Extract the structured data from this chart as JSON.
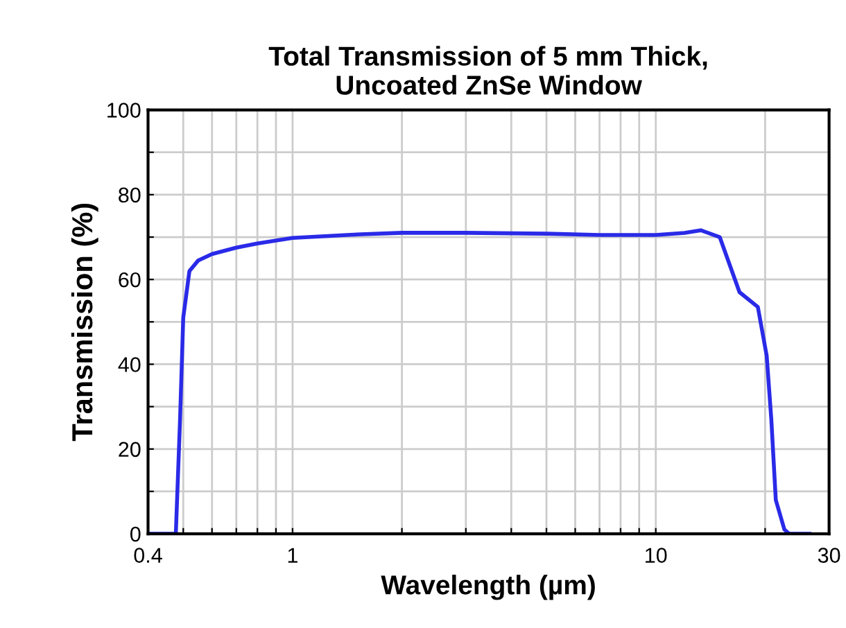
{
  "chart_data": {
    "type": "line",
    "title": "Total Transmission of 5 mm Thick,\nUncoated ZnSe Window",
    "xlabel": "Wavelength (µm)",
    "ylabel": "Transmission (%)",
    "log": "x",
    "grid": true,
    "marker": "none",
    "line_style": "solid",
    "xlim": [
      0.4,
      30
    ],
    "ylim": [
      0,
      100
    ],
    "xticks": [
      0.4,
      {
        "value": 0.5,
        "label": null
      },
      {
        "value": 0.6,
        "label": null
      },
      {
        "value": 0.7,
        "label": null
      },
      {
        "value": 0.8,
        "label": null
      },
      {
        "value": 0.9,
        "label": null
      },
      1,
      {
        "value": 2,
        "label": null
      },
      {
        "value": 3,
        "label": null
      },
      {
        "value": 4,
        "label": null
      },
      {
        "value": 5,
        "label": null
      },
      {
        "value": 6,
        "label": null
      },
      {
        "value": 7,
        "label": null
      },
      {
        "value": 8,
        "label": null
      },
      {
        "value": 9,
        "label": null
      },
      10,
      {
        "value": 20,
        "label": null
      },
      30
    ],
    "yticks": [
      0,
      {
        "value": 10,
        "label": null
      },
      20,
      {
        "value": 30,
        "label": null
      },
      40,
      {
        "value": 50,
        "label": null
      },
      60,
      {
        "value": 70,
        "label": null
      },
      80,
      {
        "value": 90,
        "label": null
      },
      100
    ],
    "series": [
      {
        "color": "#2a2ae8",
        "x": [
          0.4,
          0.477,
          0.49,
          0.5,
          0.52,
          0.55,
          0.6,
          0.7,
          0.8,
          1,
          1.5,
          2,
          3,
          5,
          7,
          10,
          12,
          13.3,
          15,
          17,
          19.1,
          20.2,
          20.8,
          21.4,
          22.6,
          23.3,
          26.5
        ],
        "values": [
          0,
          0,
          27,
          51,
          62,
          64.5,
          66,
          67.5,
          68.5,
          69.8,
          70.6,
          71,
          71,
          70.8,
          70.5,
          70.5,
          71,
          71.6,
          70,
          57,
          53.5,
          42,
          27,
          8,
          1,
          0,
          0
        ]
      }
    ]
  }
}
